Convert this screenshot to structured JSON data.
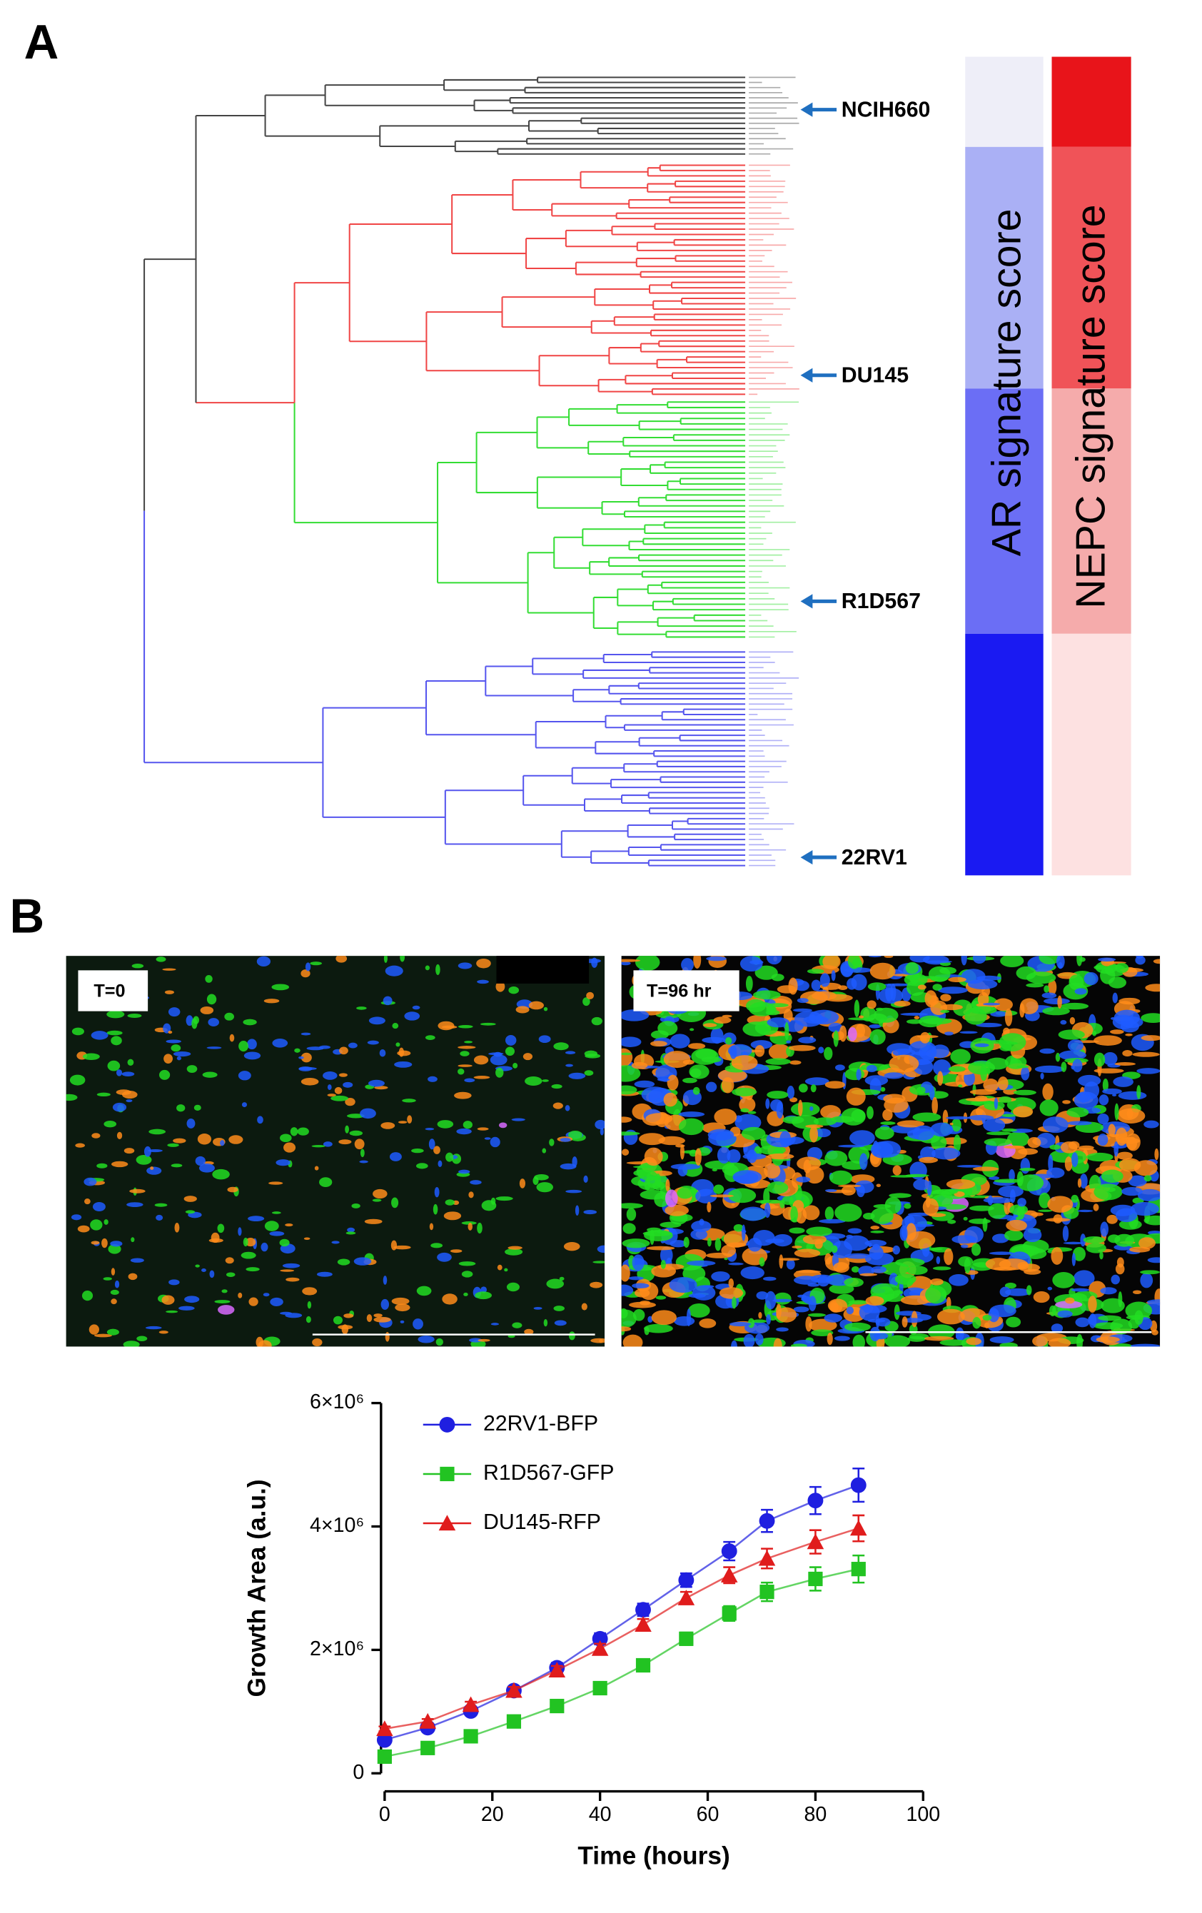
{
  "panel_labels": [
    "A",
    "B"
  ],
  "dendrogram": {
    "arrow_labels": [
      "NCIH660",
      "DU145",
      "R1D567",
      "22RV1"
    ]
  },
  "signature_bars": [
    "AR signature score",
    "NEPC signature score"
  ],
  "images": [
    {
      "label": "T=0"
    },
    {
      "label": "T=96 hr"
    }
  ],
  "chart_data": {
    "type": "line",
    "xlabel": "Time (hours)",
    "ylabel": "Growth Area (a.u.)",
    "x": [
      0,
      8,
      16,
      24,
      32,
      40,
      48,
      56,
      64,
      71,
      80,
      88
    ],
    "xlim": [
      0,
      100
    ],
    "xticks": [
      0,
      20,
      40,
      60,
      80,
      100
    ],
    "ylim": [
      0,
      6000000
    ],
    "yticks": [
      0,
      {
        "value": 2000000,
        "label": "2×10⁶"
      },
      {
        "value": 4000000,
        "label": "4×10⁶"
      },
      {
        "value": 6000000,
        "label": "6×10⁶"
      }
    ],
    "series": [
      {
        "name": "22RV1-BFP",
        "color": "#1f1fe0",
        "marker": "circle",
        "values": [
          540000,
          740000,
          1010000,
          1340000,
          1710000,
          2180000,
          2650000,
          3130000,
          3600000,
          4090000,
          4420000,
          4670000
        ],
        "errors": [
          50000,
          50000,
          60000,
          70000,
          80000,
          90000,
          100000,
          110000,
          150000,
          180000,
          220000,
          270000
        ]
      },
      {
        "name": "R1D567-GFP",
        "color": "#22c322",
        "marker": "square",
        "values": [
          270000,
          410000,
          600000,
          840000,
          1090000,
          1380000,
          1750000,
          2180000,
          2590000,
          2940000,
          3150000,
          3310000
        ],
        "errors": [
          40000,
          40000,
          50000,
          50000,
          60000,
          70000,
          80000,
          100000,
          120000,
          150000,
          190000,
          220000
        ]
      },
      {
        "name": "DU145-RFP",
        "color": "#e01c1c",
        "marker": "triangle",
        "values": [
          720000,
          840000,
          1110000,
          1340000,
          1670000,
          2020000,
          2410000,
          2840000,
          3210000,
          3480000,
          3750000,
          3970000
        ],
        "errors": [
          40000,
          40000,
          50000,
          60000,
          70000,
          80000,
          90000,
          100000,
          130000,
          160000,
          190000,
          210000
        ]
      }
    ]
  }
}
